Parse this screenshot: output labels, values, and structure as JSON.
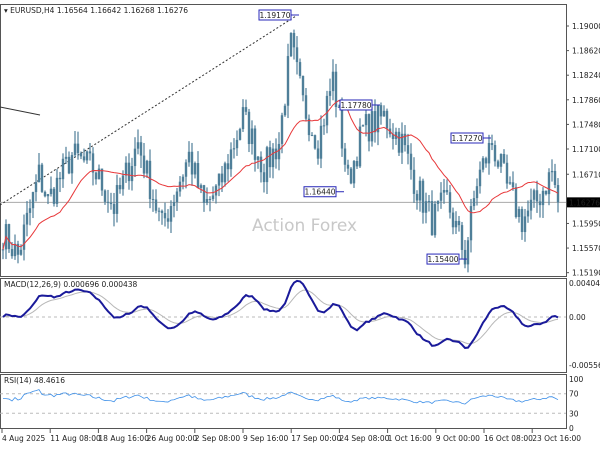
{
  "header": {
    "symbol": "EURUSD,H4",
    "ohlc": "1.16564 1.16642 1.16268 1.16276"
  },
  "watermark": "Action Forex",
  "colors": {
    "bars": "#4f7f99",
    "ma": "#e8383a",
    "macd": "#1a1a9a",
    "signal": "#b8b8b8",
    "rsi": "#3d8fe8",
    "label": "#2828b8"
  },
  "price_axis": [
    "1.19000",
    "1.18620",
    "1.18240",
    "1.17860",
    "1.17480",
    "1.17100",
    "1.16710",
    "1.15950",
    "1.15570",
    "1.15190"
  ],
  "current_price": "1.16276",
  "annotations": [
    {
      "text": "1.19170",
      "price": 1.1917,
      "bar": 98
    },
    {
      "text": "1.17780",
      "price": 1.1778,
      "bar": 125
    },
    {
      "text": "1.16440",
      "price": 1.1644,
      "bar": 113
    },
    {
      "text": "1.17270",
      "price": 1.1727,
      "bar": 162
    },
    {
      "text": "1.15400",
      "price": 1.154,
      "bar": 154
    }
  ],
  "macd": {
    "label": "MACD(12,26,9) 0.000696 0.000438",
    "axis": [
      "0.004049",
      "0.00",
      "-0.005561"
    ]
  },
  "rsi": {
    "label": "RSI(14) 48.4616",
    "axis": [
      "100",
      "70",
      "30",
      "0"
    ]
  },
  "time_axis": [
    "4 Aug 2025",
    "11 Aug 08:00",
    "18 Aug 16:00",
    "26 Aug 00:00",
    "2 Sep 08:00",
    "9 Sep 16:00",
    "17 Sep 00:00",
    "24 Sep 08:00",
    "1 Oct 16:00",
    "9 Oct 00:00",
    "16 Oct 08:00",
    "23 Oct 16:00"
  ],
  "chart_data": {
    "type": "ohlc",
    "price_range": [
      1.1514,
      1.194
    ],
    "waypoints_bar_price": [
      [
        0,
        1.158
      ],
      [
        5,
        1.1545
      ],
      [
        12,
        1.167
      ],
      [
        15,
        1.163
      ],
      [
        23,
        1.17
      ],
      [
        30,
        1.168
      ],
      [
        37,
        1.162
      ],
      [
        45,
        1.172
      ],
      [
        53,
        1.159
      ],
      [
        62,
        1.17
      ],
      [
        67,
        1.162
      ],
      [
        72,
        1.165
      ],
      [
        80,
        1.176
      ],
      [
        87,
        1.168
      ],
      [
        92,
        1.172
      ],
      [
        96,
        1.187
      ],
      [
        100,
        1.178
      ],
      [
        105,
        1.172
      ],
      [
        110,
        1.182
      ],
      [
        115,
        1.166
      ],
      [
        120,
        1.174
      ],
      [
        127,
        1.176
      ],
      [
        133,
        1.172
      ],
      [
        138,
        1.165
      ],
      [
        143,
        1.16
      ],
      [
        148,
        1.163
      ],
      [
        154,
        1.1545
      ],
      [
        158,
        1.166
      ],
      [
        163,
        1.172
      ],
      [
        168,
        1.165
      ],
      [
        173,
        1.16
      ],
      [
        178,
        1.163
      ],
      [
        183,
        1.1675
      ],
      [
        185,
        1.16276
      ]
    ]
  }
}
